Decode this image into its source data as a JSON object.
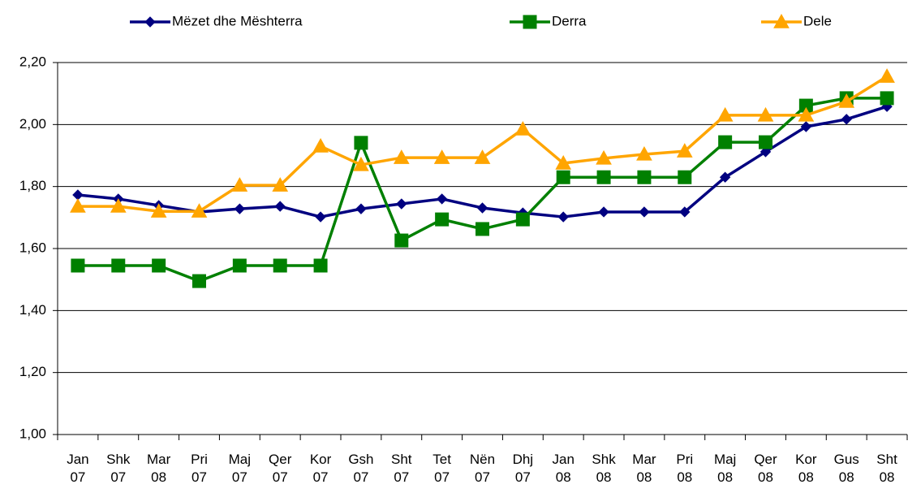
{
  "chart_data": {
    "type": "line",
    "categories": [
      "Jan 07",
      "Shk 07",
      "Mar 08",
      "Pri 07",
      "Maj 07",
      "Qer 07",
      "Kor 07",
      "Gsh 07",
      "Sht 07",
      "Tet 07",
      "Nën 07",
      "Dhj 07",
      "Jan 08",
      "Shk 08",
      "Mar 08",
      "Pri 08",
      "Maj 08",
      "Qer 08",
      "Kor 08",
      "Gus 08",
      "Sht 08"
    ],
    "series": [
      {
        "name": "Mëzet dhe Mështerra",
        "color": "#000080",
        "marker": "diamond",
        "values": [
          1.773,
          1.76,
          1.739,
          1.718,
          1.728,
          1.736,
          1.702,
          1.728,
          1.744,
          1.76,
          1.731,
          1.715,
          1.702,
          1.718,
          1.718,
          1.718,
          1.83,
          1.912,
          1.993,
          2.017,
          2.058
        ]
      },
      {
        "name": "Derra",
        "color": "#008000",
        "marker": "square",
        "values": [
          1.545,
          1.545,
          1.545,
          1.495,
          1.545,
          1.545,
          1.545,
          1.941,
          1.626,
          1.694,
          1.663,
          1.694,
          1.83,
          1.83,
          1.83,
          1.83,
          1.943,
          1.943,
          2.061,
          2.085,
          2.085
        ]
      },
      {
        "name": "Dele",
        "color": "#ffa500",
        "marker": "triangle",
        "values": [
          1.736,
          1.736,
          1.72,
          1.72,
          1.804,
          1.804,
          1.93,
          1.87,
          1.893,
          1.893,
          1.893,
          1.985,
          1.875,
          1.891,
          1.904,
          1.914,
          2.03,
          2.03,
          2.03,
          2.074,
          2.155
        ]
      }
    ],
    "ylim": [
      1.0,
      2.2
    ],
    "yticks": [
      {
        "value": 1.0,
        "label": "1,00"
      },
      {
        "value": 1.2,
        "label": "1,20"
      },
      {
        "value": 1.4,
        "label": "1,40"
      },
      {
        "value": 1.6,
        "label": "1,60"
      },
      {
        "value": 1.8,
        "label": "1,80"
      },
      {
        "value": 2.0,
        "label": "2,00"
      },
      {
        "value": 2.2,
        "label": "2,20"
      }
    ],
    "grid": true
  }
}
